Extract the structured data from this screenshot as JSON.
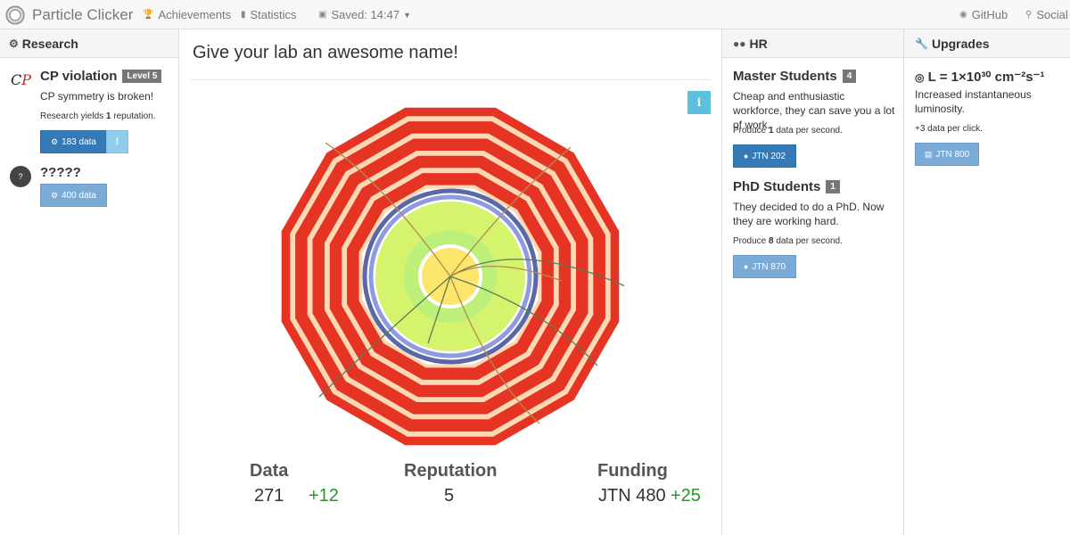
{
  "navbar": {
    "brand": "Particle Clicker",
    "achievements": "Achievements",
    "statistics": "Statistics",
    "saved": "Saved: 14:47",
    "github": "GitHub",
    "social": "Social"
  },
  "research": {
    "header": "Research",
    "items": [
      {
        "title": "CP violation",
        "level": "Level 5",
        "description": "CP symmetry is broken!",
        "yield_prefix": "Research yields ",
        "yield_value": "1",
        "yield_suffix": " reputation.",
        "cost": "183 data",
        "info": "!"
      },
      {
        "title": "?????",
        "icon_text": "?",
        "cost": "400 data"
      }
    ]
  },
  "center": {
    "lab_name": "Give your lab an awesome name!",
    "info_icon": "i",
    "stats": {
      "data_label": "Data",
      "data_value": "271",
      "data_rate": "+12",
      "reputation_label": "Reputation",
      "reputation_value": "5",
      "funding_label": "Funding",
      "funding_value": "JTN 480",
      "funding_rate": "+25"
    }
  },
  "hr": {
    "header": "HR",
    "items": [
      {
        "title": "Master Students",
        "count": "4",
        "description": "Cheap and enthusiastic workforce, they can save you a lot of work.",
        "produce_prefix": "Produce ",
        "produce_value": "1",
        "produce_suffix": " data per second.",
        "cost": "JTN 202"
      },
      {
        "title": "PhD Students",
        "count": "1",
        "description": "They decided to do a PhD. Now they are working hard.",
        "produce_prefix": "Produce ",
        "produce_value": "8",
        "produce_suffix": " data per second.",
        "cost": "JTN 870"
      }
    ]
  },
  "upgrades": {
    "header": "Upgrades",
    "items": [
      {
        "title": "L = 1×10³⁰ cm⁻²s⁻¹",
        "description": "Increased instantaneous luminosity.",
        "effect": "+3 data per click.",
        "cost": "JTN 800"
      }
    ]
  },
  "colors": {
    "primary": "#337ab7",
    "primary_light": "#7aaad6",
    "info": "#5bc0de",
    "positive": "#1e9e1e",
    "detector_red": "#e53423",
    "detector_cream": "#fbd9b5",
    "detector_blue": "#5a67a8",
    "detector_green": "#d6f36e",
    "detector_yellow": "#fde66b"
  }
}
